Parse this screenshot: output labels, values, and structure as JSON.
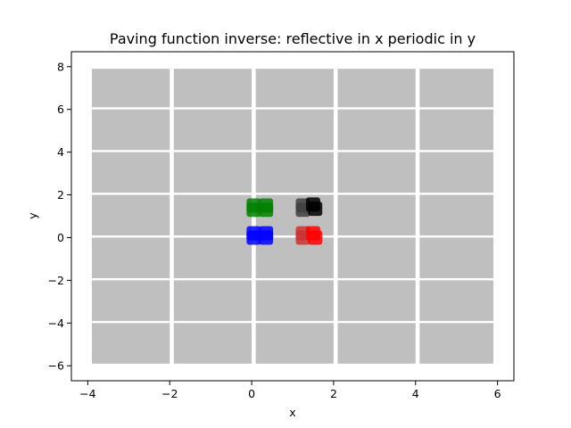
{
  "chart_data": {
    "type": "scatter",
    "title": "Paving function inverse: reflective in x periodic in y",
    "xlabel": "x",
    "ylabel": "y",
    "xlim": [
      -4.4,
      6.4
    ],
    "ylim": [
      -6.7,
      8.7
    ],
    "xticks": [
      -4,
      -2,
      0,
      2,
      4,
      6
    ],
    "yticks": [
      -6,
      -4,
      -2,
      0,
      2,
      4,
      6,
      8
    ],
    "xtick_labels": [
      "−4",
      "−2",
      "0",
      "2",
      "4",
      "6"
    ],
    "ytick_labels": [
      "−6",
      "−4",
      "−2",
      "0",
      "2",
      "4",
      "6",
      "8"
    ],
    "grid": false,
    "legend": "none",
    "tiles": {
      "color": "#bfbfbf",
      "columns": [
        [
          -3.9,
          -2.0
        ],
        [
          -1.9,
          0.0
        ],
        [
          0.1,
          2.0
        ],
        [
          2.1,
          4.0
        ],
        [
          4.1,
          5.9
        ]
      ],
      "rows": [
        [
          -5.9,
          -4.0
        ],
        [
          -3.9,
          -2.0
        ],
        [
          -1.9,
          0.0
        ],
        [
          0.1,
          2.0
        ],
        [
          2.1,
          4.0
        ],
        [
          4.1,
          6.0
        ],
        [
          6.1,
          7.9
        ]
      ]
    },
    "series": [
      {
        "color": "#0000ff",
        "points": [
          [
            0.05,
            0.2
          ],
          [
            0.35,
            0.2
          ],
          [
            0.05,
            0.0
          ],
          [
            0.35,
            0.0
          ]
        ]
      },
      {
        "color": "#008000",
        "points": [
          [
            0.05,
            1.5
          ],
          [
            0.35,
            1.5
          ],
          [
            0.05,
            1.3
          ],
          [
            0.35,
            1.3
          ]
        ]
      },
      {
        "color": "#404040",
        "points": [
          [
            1.25,
            1.5
          ],
          [
            1.25,
            1.3
          ]
        ]
      },
      {
        "color": "#000000",
        "points": [
          [
            1.5,
            1.55
          ],
          [
            1.55,
            1.35
          ]
        ]
      },
      {
        "color": "#cc3333",
        "points": [
          [
            1.25,
            0.2
          ],
          [
            1.25,
            0.0
          ]
        ]
      },
      {
        "color": "#ff0000",
        "points": [
          [
            1.5,
            0.2
          ],
          [
            1.55,
            0.0
          ]
        ]
      }
    ]
  }
}
